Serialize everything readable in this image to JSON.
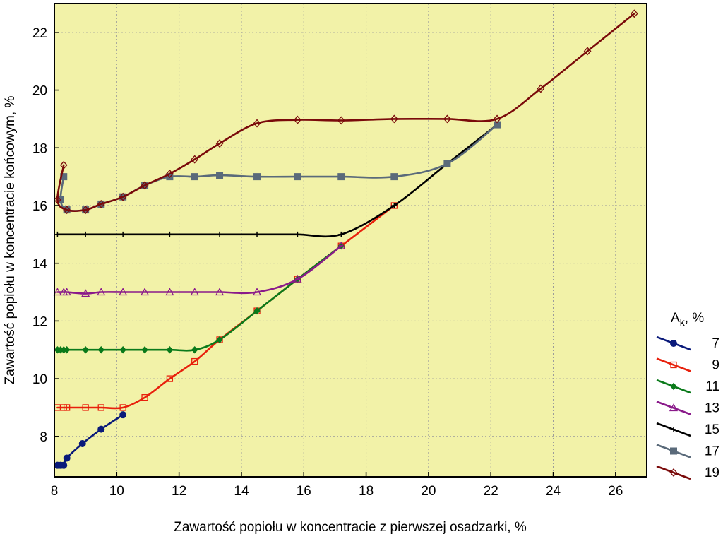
{
  "chart_data": {
    "type": "line",
    "xlabel": "Zawartość popiołu w koncentracie z pierwszej osadzarki,     %",
    "ylabel": "Zawartość popiołu w koncentracie końcowym,  %",
    "xlim": [
      8,
      27
    ],
    "ylim": [
      6.6,
      23
    ],
    "xticks": [
      8,
      10,
      12,
      14,
      16,
      18,
      20,
      22,
      24,
      26
    ],
    "yticks": [
      8,
      10,
      12,
      14,
      16,
      18,
      20,
      22
    ],
    "grid": true,
    "plot_background": "#f2f2a8",
    "legend": {
      "placement": "right",
      "title_main": "A",
      "title_sub": "k",
      "title_suffix": ",   %"
    },
    "series": [
      {
        "name": "7",
        "color": "#0a1a7a",
        "marker": "circle-filled",
        "x": [
          8.1,
          8.2,
          8.3,
          8.4,
          8.9,
          9.5,
          10.2
        ],
        "y": [
          7.0,
          7.0,
          7.0,
          7.25,
          7.75,
          8.25,
          8.75
        ]
      },
      {
        "name": "9",
        "color": "#e8200c",
        "marker": "square-open",
        "x": [
          8.1,
          8.3,
          8.4,
          9.0,
          9.5,
          10.2,
          10.9,
          11.7,
          12.5,
          13.3,
          14.5,
          15.8,
          17.2,
          18.9
        ],
        "y": [
          9.0,
          9.0,
          9.0,
          9.0,
          9.0,
          9.0,
          9.35,
          10.0,
          10.6,
          11.35,
          12.35,
          13.45,
          14.6,
          16.0
        ]
      },
      {
        "name": "11",
        "color": "#0a7a1a",
        "marker": "diamond-filled",
        "x": [
          8.1,
          8.2,
          8.3,
          8.4,
          9.0,
          9.5,
          10.2,
          10.9,
          11.7,
          12.5,
          13.3,
          14.5,
          15.8,
          17.2
        ],
        "y": [
          11.0,
          11.0,
          11.0,
          11.0,
          11.0,
          11.0,
          11.0,
          11.0,
          11.0,
          11.0,
          11.35,
          12.35,
          13.45,
          14.6
        ]
      },
      {
        "name": "13",
        "color": "#8a1a8a",
        "marker": "triangle-open",
        "x": [
          8.1,
          8.3,
          8.4,
          9.0,
          9.5,
          10.2,
          10.9,
          11.7,
          12.5,
          13.3,
          14.5,
          15.8,
          17.2
        ],
        "y": [
          13.0,
          13.0,
          13.0,
          12.95,
          13.0,
          13.0,
          13.0,
          13.0,
          13.0,
          13.0,
          13.0,
          13.45,
          14.6
        ]
      },
      {
        "name": "15",
        "color": "#000000",
        "marker": "plus",
        "x": [
          8.1,
          9.0,
          10.2,
          11.7,
          13.3,
          14.5,
          15.8,
          17.2,
          18.9,
          20.6,
          22.2
        ],
        "y": [
          15.0,
          15.0,
          15.0,
          15.0,
          15.0,
          15.0,
          15.0,
          15.0,
          16.0,
          17.45,
          18.8
        ]
      },
      {
        "name": "17",
        "color": "#5a6a7a",
        "marker": "square-filled",
        "x": [
          8.3,
          8.2,
          8.4,
          9.0,
          9.5,
          10.2,
          10.9,
          11.7,
          12.5,
          13.3,
          14.5,
          15.8,
          17.2,
          18.9,
          20.6,
          22.2
        ],
        "y": [
          17.0,
          16.2,
          15.85,
          15.85,
          16.05,
          16.3,
          16.7,
          17.0,
          17.0,
          17.05,
          17.0,
          17.0,
          17.0,
          17.0,
          17.45,
          18.8
        ]
      },
      {
        "name": "19",
        "color": "#7a0a0a",
        "marker": "diamond-open",
        "x": [
          8.3,
          8.1,
          8.4,
          9.0,
          9.5,
          10.2,
          10.9,
          11.7,
          12.5,
          13.3,
          14.5,
          15.8,
          17.2,
          18.9,
          20.6,
          22.2,
          23.6,
          25.1,
          26.6
        ],
        "y": [
          17.4,
          16.2,
          15.85,
          15.85,
          16.05,
          16.3,
          16.7,
          17.1,
          17.6,
          18.15,
          18.85,
          18.97,
          18.95,
          19.0,
          19.0,
          19.0,
          20.05,
          21.35,
          22.65
        ]
      }
    ]
  }
}
